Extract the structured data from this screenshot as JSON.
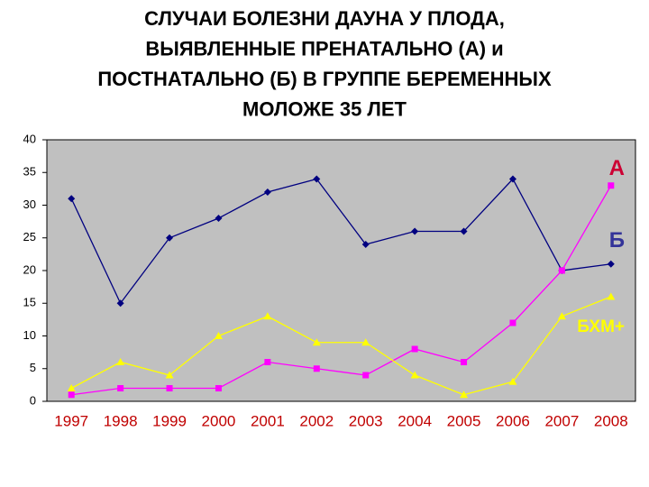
{
  "chart_data": {
    "type": "line",
    "title": [
      "СЛУЧАИ  БОЛЕЗНИ ДАУНА У ПЛОДА,",
      "ВЫЯВЛЕННЫЕ  ПРЕНАТАЛЬНО (А) и",
      "ПОСТНАТАЛЬНО (Б)   В ГРУППЕ БЕРЕМЕННЫХ",
      "МОЛОЖЕ 35 ЛЕТ"
    ],
    "categories": [
      "1997",
      "1998",
      "1999",
      "2000",
      "2001",
      "2002",
      "2003",
      "2004",
      "2005",
      "2006",
      "2007",
      "2008"
    ],
    "series": [
      {
        "name": "Б",
        "color": "#000080",
        "marker": "diamond",
        "label_color": "#333399",
        "values": [
          31,
          15,
          25,
          28,
          32,
          34,
          24,
          26,
          26,
          34,
          20,
          21
        ]
      },
      {
        "name": "А",
        "color": "#ff00ff",
        "marker": "square",
        "label_color": "#cc0033",
        "values": [
          1,
          2,
          2,
          2,
          6,
          5,
          4,
          8,
          6,
          12,
          20,
          33
        ]
      },
      {
        "name": "БХМ+",
        "color": "#ffff00",
        "marker": "triangle",
        "label_color": "#ffff00",
        "values": [
          2,
          6,
          4,
          10,
          13,
          9,
          9,
          4,
          1,
          3,
          13,
          16
        ]
      }
    ],
    "ylim": [
      0,
      40
    ],
    "yticks": [
      0,
      5,
      10,
      15,
      20,
      25,
      30,
      35,
      40
    ],
    "grid": false,
    "plot_background": "#c0c0c0",
    "category_label_color": "#c00000"
  }
}
